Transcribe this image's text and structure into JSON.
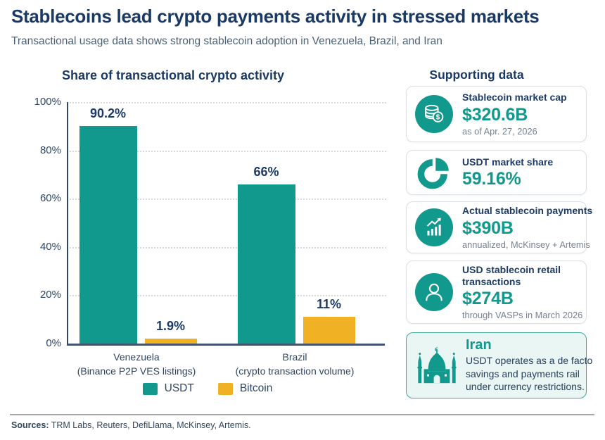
{
  "header": {
    "title": "Stablecoins lead crypto payments activity in stressed markets",
    "subtitle": "Transactional usage data shows strong stablecoin adoption in Venezuela, Brazil, and Iran"
  },
  "colors": {
    "navy": "#1b3965",
    "teal": "#12998e",
    "gold": "#f0b125",
    "note_gray": "#74828f",
    "iran_card_bg": "#e9f6f3",
    "iran_card_border": "#41ab9e"
  },
  "chart_data": {
    "type": "bar",
    "title": "Share of transactional crypto activity",
    "categories": [
      {
        "label": "Venezuela",
        "sub": "(Binance P2P VES listings)"
      },
      {
        "label": "Brazil",
        "sub": "(crypto transaction volume)"
      }
    ],
    "series": [
      {
        "name": "USDT",
        "color": "#12998e",
        "values": [
          90.2,
          66
        ],
        "labels": [
          "90.2%",
          "66%"
        ]
      },
      {
        "name": "Bitcoin",
        "color": "#f0b125",
        "values": [
          1.9,
          11
        ],
        "labels": [
          "1.9%",
          "11%"
        ]
      }
    ],
    "ylim": [
      0,
      100
    ],
    "y_ticks": [
      {
        "value": 100,
        "label": "100%"
      },
      {
        "value": 80,
        "label": "80%"
      },
      {
        "value": 60,
        "label": "60%"
      },
      {
        "value": 40,
        "label": "40%"
      },
      {
        "value": 20,
        "label": "20%"
      },
      {
        "value": 0,
        "label": "0%"
      }
    ],
    "grid": "horizontal dotted",
    "legend_position": "bottom"
  },
  "supporting": {
    "heading": "Supporting data",
    "cards": [
      {
        "icon": "coins-icon",
        "title": "Stablecoin market cap",
        "value": "$320.6B",
        "note": "as of Apr. 27, 2026"
      },
      {
        "icon": "pie-chart-icon",
        "title": "USDT market share",
        "value": "59.16%",
        "note": ""
      },
      {
        "icon": "growth-chart-icon",
        "title": "Actual stablecoin payments",
        "value": "$390B",
        "note": "annualized, McKinsey + Artemis"
      },
      {
        "icon": "person-icon",
        "title": "USD stablecoin retail transactions",
        "value": "$274B",
        "note": "through VASPs in March 2026"
      }
    ],
    "highlight_card": {
      "icon": "mosque-icon",
      "title": "Iran",
      "text": "USDT operates as a de facto savings and payments rail under currency restrictions."
    }
  },
  "footer": {
    "sources_label": "Sources:",
    "sources_text": " TRM Labs, Reuters, DefiLlama, McKinsey, Artemis."
  }
}
